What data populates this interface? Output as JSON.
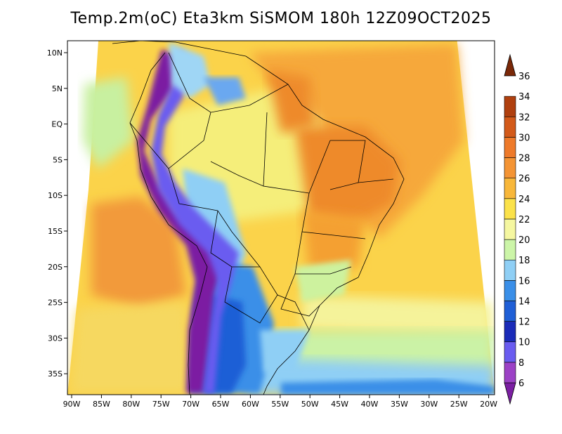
{
  "title": "Temp.2m(oC) Eta3km SiSMOM 180h 12Z09OCT2025",
  "map": {
    "lon_ticks": [
      "90W",
      "85W",
      "80W",
      "75W",
      "70W",
      "65W",
      "60W",
      "55W",
      "50W",
      "45W",
      "40W",
      "35W",
      "30W",
      "25W",
      "20W"
    ],
    "lat_ticks": [
      "10N",
      "5N",
      "EQ",
      "5S",
      "10S",
      "15S",
      "20S",
      "25S",
      "30S",
      "35S"
    ]
  },
  "colorbar": {
    "labels": [
      "6",
      "8",
      "10",
      "12",
      "14",
      "16",
      "18",
      "20",
      "22",
      "24",
      "26",
      "28",
      "30",
      "32",
      "34",
      "36"
    ],
    "colors": [
      "#7b1fa2",
      "#9c42c6",
      "#6a5cf0",
      "#1a2bb8",
      "#1f5fd6",
      "#3a8fe8",
      "#8fcff5",
      "#ccf5a8",
      "#f5f7a0",
      "#fbe24a",
      "#f8b73a",
      "#f49434",
      "#ee7a2a",
      "#d35a1a",
      "#b0400f",
      "#7a2808"
    ]
  }
}
